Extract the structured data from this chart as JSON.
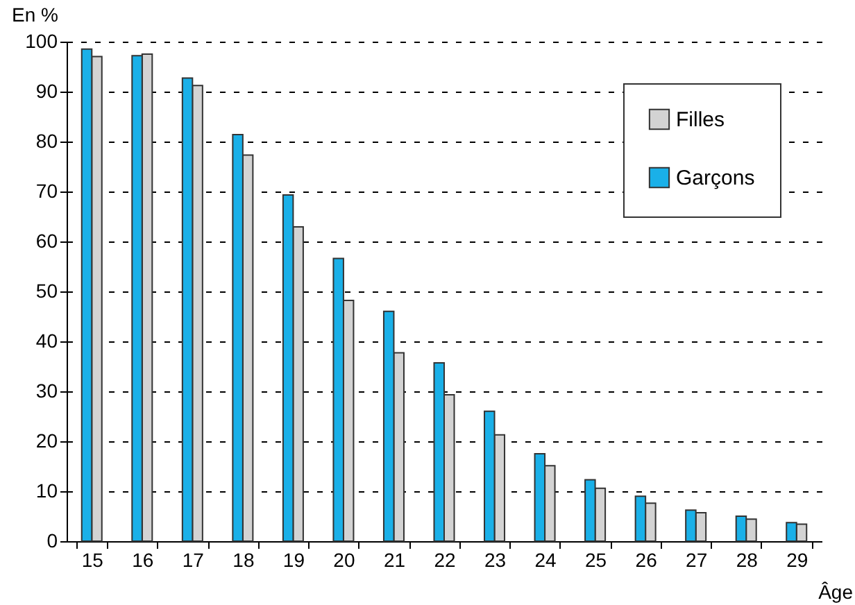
{
  "chart_data": {
    "type": "bar",
    "xlabel": "Âge",
    "ylabel": "En %",
    "categories": [
      "15",
      "16",
      "17",
      "18",
      "19",
      "20",
      "21",
      "22",
      "23",
      "24",
      "25",
      "26",
      "27",
      "28",
      "29"
    ],
    "series": [
      {
        "name": "Filles",
        "color": "#d3d3d3",
        "values": [
          97,
          97.5,
          91.2,
          77.3,
          62.9,
          48.2,
          37.7,
          29.3,
          21.3,
          15.1,
          10.6,
          7.6,
          5.7,
          4.4,
          3.4
        ]
      },
      {
        "name": "Garçons",
        "color": "#1ab0e8",
        "values": [
          98.5,
          97.2,
          92.7,
          81.4,
          69.3,
          56.6,
          46,
          35.7,
          26,
          17.5,
          12.3,
          9,
          6.2,
          5,
          3.7
        ]
      }
    ],
    "ylim": [
      0,
      100
    ],
    "yticks": [
      0,
      10,
      20,
      30,
      40,
      50,
      60,
      70,
      80,
      90,
      100
    ],
    "grid": "y",
    "legend": "top right"
  }
}
